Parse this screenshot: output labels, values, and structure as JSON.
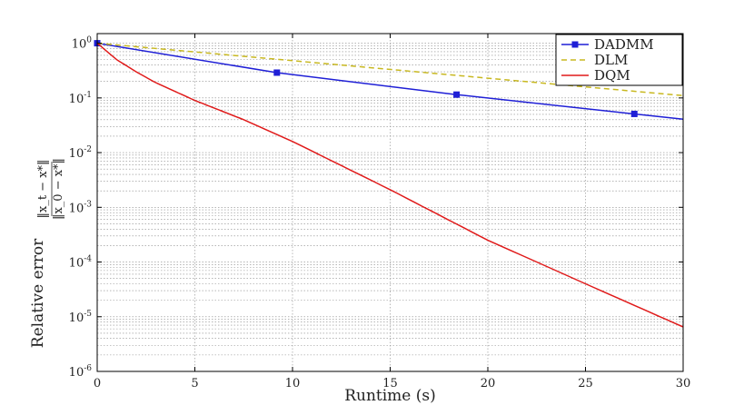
{
  "chart_data": {
    "type": "line",
    "xlabel": "Runtime (s)",
    "ylabel": "Relative error",
    "ylabel_fraction": {
      "numerator": "‖x_t − x*‖",
      "denominator": "‖x_0 − x*‖"
    },
    "xlim": [
      0,
      30
    ],
    "ylim": [
      1e-06,
      1.5
    ],
    "yscale": "log",
    "grid": true,
    "legend_position": "top-right",
    "x_ticks": [
      "0",
      "5",
      "10",
      "15",
      "20",
      "25",
      "30"
    ],
    "y_ticks": [
      {
        "base": "10",
        "exp": "0"
      },
      {
        "base": "10",
        "exp": "-1"
      },
      {
        "base": "10",
        "exp": "-2"
      },
      {
        "base": "10",
        "exp": "-3"
      },
      {
        "base": "10",
        "exp": "-4"
      },
      {
        "base": "10",
        "exp": "-5"
      },
      {
        "base": "10",
        "exp": "-6"
      }
    ],
    "series": [
      {
        "name": "DADMM",
        "color": "#1f1fd6",
        "style": "solid",
        "marker": "square",
        "x": [
          0,
          9.2,
          18.4,
          27.5,
          30
        ],
        "y": [
          1.0,
          0.29,
          0.115,
          0.051,
          0.041
        ],
        "marker_x": [
          0,
          9.2,
          18.4,
          27.5
        ]
      },
      {
        "name": "DLM",
        "color": "#c8b820",
        "style": "dashed",
        "marker": "none",
        "x": [
          0,
          10,
          20,
          30
        ],
        "y": [
          1.0,
          0.48,
          0.23,
          0.11
        ]
      },
      {
        "name": "DQM",
        "color": "#e01a1a",
        "style": "solid",
        "marker": "none",
        "x": [
          0,
          1,
          2,
          3,
          5,
          7.5,
          10,
          15,
          20,
          25,
          30
        ],
        "y": [
          1.0,
          0.5,
          0.3,
          0.19,
          0.09,
          0.04,
          0.016,
          0.0021,
          0.00025,
          4e-05,
          6.5e-06
        ]
      }
    ]
  }
}
